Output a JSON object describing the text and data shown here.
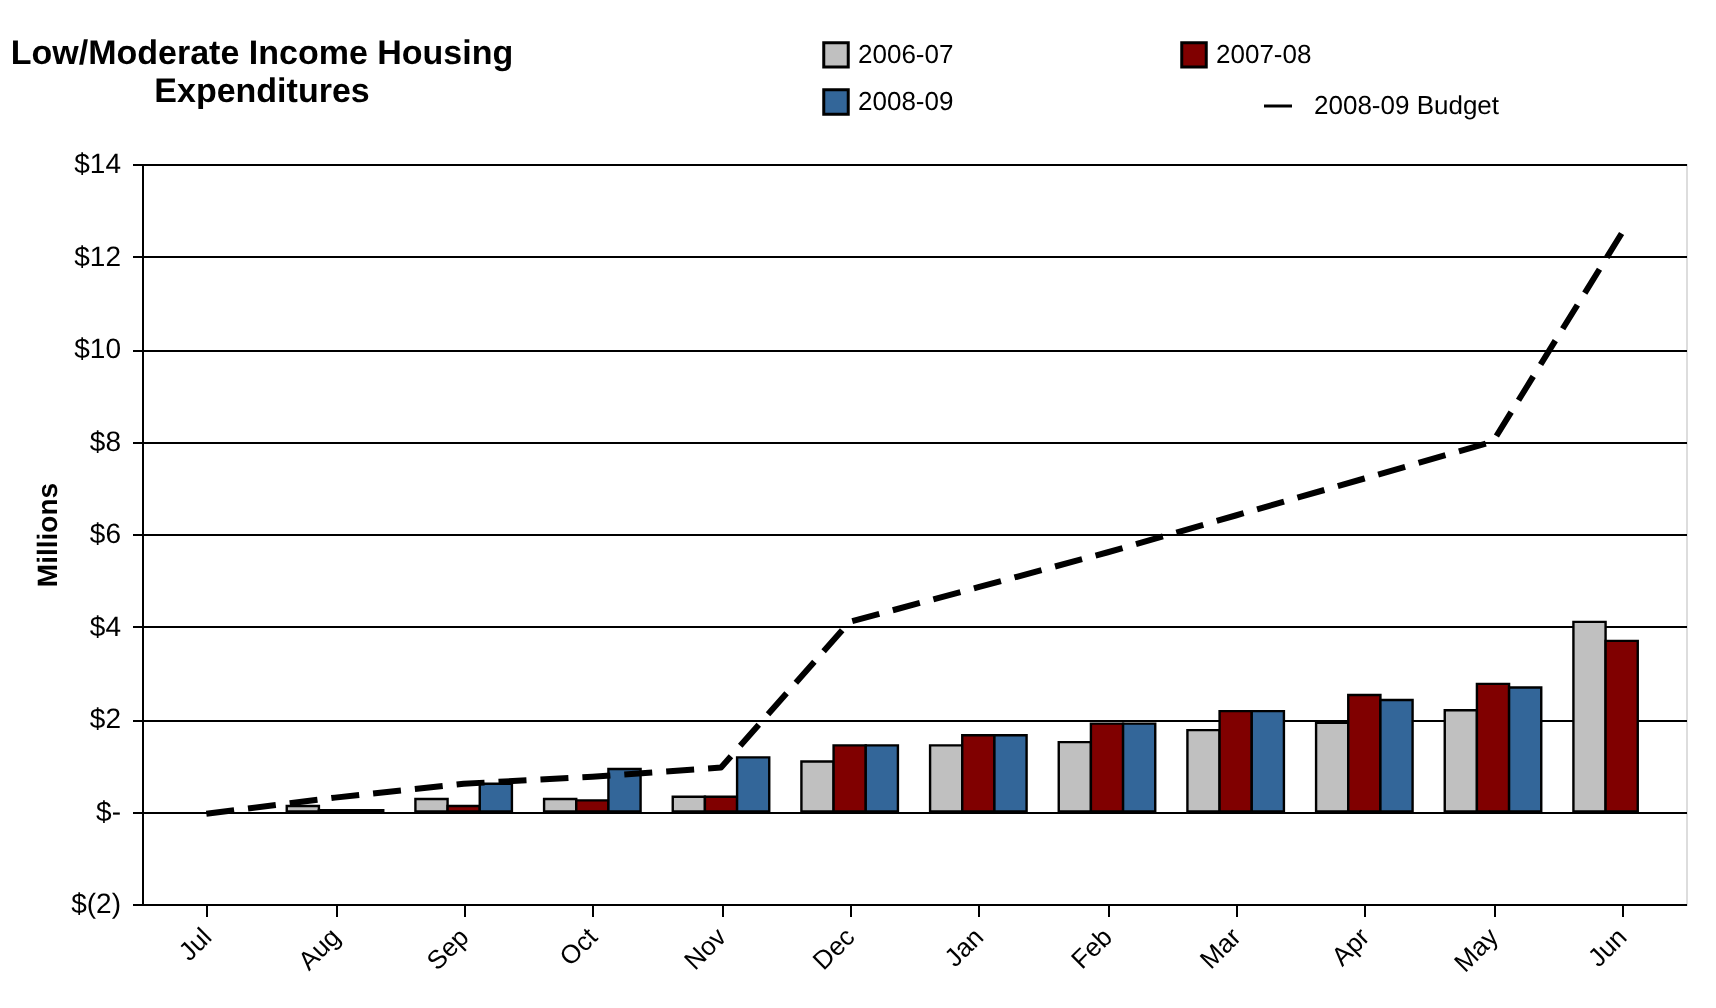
{
  "chart_data": {
    "type": "bar",
    "title": [
      "Low/Moderate Income Housing",
      "Expenditures"
    ],
    "ylabel": "Millions",
    "categories": [
      "Jul",
      "Aug",
      "Sep",
      "Oct",
      "Nov",
      "Dec",
      "Jan",
      "Feb",
      "Mar",
      "Apr",
      "May",
      "Jun"
    ],
    "series": [
      {
        "name": "2006-07",
        "color": "#c0c0c0",
        "values": [
          null,
          0.12,
          0.27,
          0.27,
          0.32,
          1.08,
          1.43,
          1.5,
          1.76,
          1.92,
          2.19,
          4.1
        ]
      },
      {
        "name": "2007-08",
        "color": "#800000",
        "values": [
          null,
          0.03,
          0.12,
          0.24,
          0.32,
          1.43,
          1.65,
          1.9,
          2.17,
          2.52,
          2.76,
          3.69
        ]
      },
      {
        "name": "2008-09",
        "color": "#336699",
        "values": [
          null,
          0.03,
          0.6,
          0.92,
          1.17,
          1.43,
          1.65,
          1.9,
          2.17,
          2.41,
          2.68,
          null
        ]
      },
      {
        "name": "2008-09 Budget",
        "type": "line",
        "color": "#000000",
        "line_style": "dashed",
        "values": [
          -0.05,
          0.3,
          0.6,
          0.75,
          0.95,
          4.1,
          4.85,
          5.6,
          6.4,
          7.2,
          8.0,
          12.5
        ]
      }
    ],
    "ylim": [
      -2,
      14
    ],
    "yticks": [
      {
        "value": -2,
        "label": "$(2)"
      },
      {
        "value": 0,
        "label": "$-"
      },
      {
        "value": 2,
        "label": "$2"
      },
      {
        "value": 4,
        "label": "$4"
      },
      {
        "value": 6,
        "label": "$6"
      },
      {
        "value": 8,
        "label": "$8"
      },
      {
        "value": 10,
        "label": "$10"
      },
      {
        "value": 12,
        "label": "$12"
      },
      {
        "value": 14,
        "label": "$14"
      }
    ],
    "grid": "y",
    "legend": "top right"
  }
}
